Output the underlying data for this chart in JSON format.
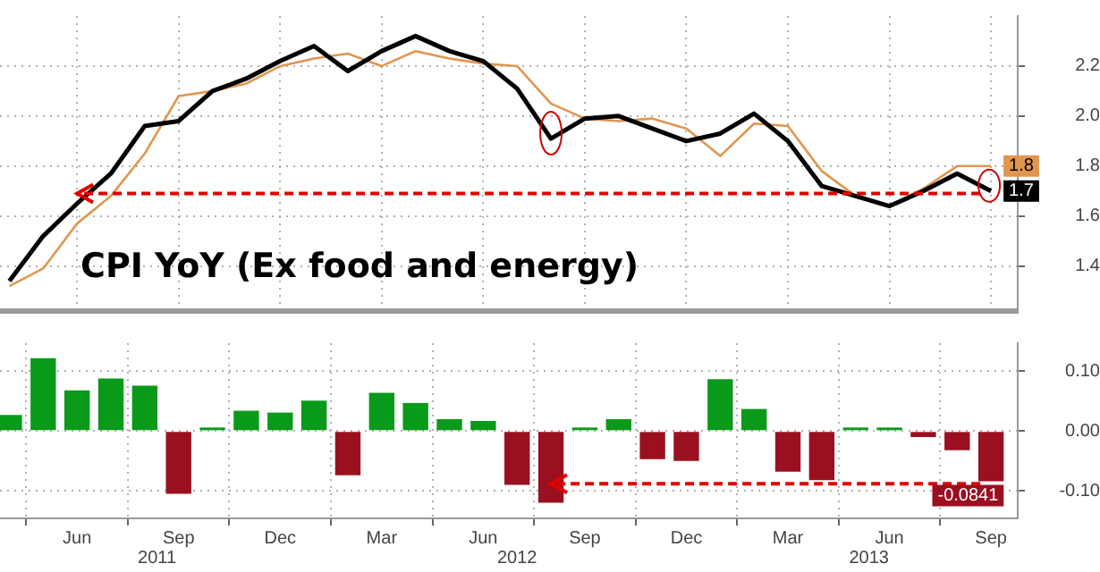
{
  "chart_data": [
    {
      "type": "line",
      "title": "CPI YoY (Ex food and energy)",
      "x": [
        "2011-04",
        "2011-05",
        "2011-06",
        "2011-07",
        "2011-08",
        "2011-09",
        "2011-10",
        "2011-11",
        "2011-12",
        "2012-01",
        "2012-02",
        "2012-03",
        "2012-04",
        "2012-05",
        "2012-06",
        "2012-07",
        "2012-08",
        "2012-09",
        "2012-10",
        "2012-11",
        "2012-12",
        "2013-01",
        "2013-02",
        "2013-03",
        "2013-04",
        "2013-05",
        "2013-06",
        "2013-07",
        "2013-08",
        "2013-09"
      ],
      "series": [
        {
          "color": "#000000",
          "values": [
            1.34,
            1.52,
            1.65,
            1.77,
            1.96,
            1.98,
            2.1,
            2.15,
            2.22,
            2.28,
            2.18,
            2.26,
            2.32,
            2.26,
            2.22,
            2.11,
            1.91,
            1.99,
            2.0,
            1.95,
            1.9,
            1.93,
            2.01,
            1.9,
            1.72,
            1.68,
            1.64,
            1.7,
            1.77,
            1.7
          ],
          "value_labels": [
            null,
            null,
            null,
            null,
            null,
            null,
            null,
            null,
            null,
            null,
            null,
            null,
            null,
            null,
            null,
            null,
            null,
            null,
            null,
            null,
            null,
            null,
            null,
            null,
            null,
            null,
            null,
            null,
            null,
            "1.7"
          ]
        },
        {
          "color": "#e0964f",
          "values": [
            1.32,
            1.39,
            1.57,
            1.68,
            1.85,
            2.08,
            2.1,
            2.13,
            2.2,
            2.23,
            2.25,
            2.2,
            2.26,
            2.23,
            2.21,
            2.2,
            2.05,
            1.99,
            1.98,
            1.99,
            1.95,
            1.84,
            1.97,
            1.96,
            1.78,
            1.68,
            1.64,
            1.71,
            1.8,
            1.8
          ],
          "value_labels": [
            null,
            null,
            null,
            null,
            null,
            null,
            null,
            null,
            null,
            null,
            null,
            null,
            null,
            null,
            null,
            null,
            null,
            null,
            null,
            null,
            null,
            null,
            null,
            null,
            null,
            null,
            null,
            null,
            null,
            "1.8"
          ]
        }
      ],
      "xlim": [
        "2011-03-23",
        "2013-09-25"
      ],
      "xticks": [
        {
          "value": "2011-06",
          "label": null
        },
        {
          "value": "2011-09",
          "label": null
        },
        {
          "value": "2011-12",
          "label": null
        },
        {
          "value": "2012-03",
          "label": null
        },
        {
          "value": "2012-06",
          "label": null
        },
        {
          "value": "2012-09",
          "label": null
        },
        {
          "value": "2012-12",
          "label": null
        },
        {
          "value": "2013-03",
          "label": null
        },
        {
          "value": "2013-06",
          "label": null
        },
        {
          "value": "2013-09",
          "label": null
        }
      ],
      "ylim": [
        1.22,
        2.4
      ],
      "yticks": [
        1.4,
        1.6,
        1.8,
        {
          "value": 2,
          "label": "2.0"
        },
        2.2
      ],
      "ref_lines": [
        {
          "axis": "y",
          "value": 1.69,
          "color": "#e00000",
          "line_style": "dashed"
        }
      ],
      "grid": true,
      "marker": "none",
      "tick_labels": "y"
    },
    {
      "type": "bar",
      "x": [
        "2011-04",
        "2011-05",
        "2011-06",
        "2011-07",
        "2011-08",
        "2011-09",
        "2011-10",
        "2011-11",
        "2011-12",
        "2012-01",
        "2012-02",
        "2012-03",
        "2012-04",
        "2012-05",
        "2012-06",
        "2012-07",
        "2012-08",
        "2012-09",
        "2012-10",
        "2012-11",
        "2012-12",
        "2013-01",
        "2013-02",
        "2013-03",
        "2013-04",
        "2013-05",
        "2013-06",
        "2013-07",
        "2013-08",
        "2013-09"
      ],
      "values": [
        0.027,
        0.122,
        0.068,
        0.088,
        0.076,
        -0.105,
        0.004,
        0.034,
        0.031,
        0.051,
        -0.074,
        0.064,
        0.047,
        0.02,
        0.017,
        -0.09,
        -0.12,
        0.002,
        0.02,
        -0.047,
        -0.05,
        0.087,
        0.037,
        -0.068,
        -0.082,
        0.004,
        0.004,
        -0.01,
        -0.032,
        -0.0841
      ],
      "colors": [
        "#0a9a1a",
        "#0a9a1a",
        "#0a9a1a",
        "#0a9a1a",
        "#0a9a1a",
        "#9a1020",
        "#0a9a1a",
        "#0a9a1a",
        "#0a9a1a",
        "#0a9a1a",
        "#9a1020",
        "#0a9a1a",
        "#0a9a1a",
        "#0a9a1a",
        "#0a9a1a",
        "#9a1020",
        "#9a1020",
        "#0a9a1a",
        "#0a9a1a",
        "#9a1020",
        "#9a1020",
        "#0a9a1a",
        "#0a9a1a",
        "#9a1020",
        "#9a1020",
        "#0a9a1a",
        "#0a9a1a",
        "#9a1020",
        "#9a1020",
        "#9a1020"
      ],
      "value_labels": [
        null,
        null,
        null,
        null,
        null,
        null,
        null,
        null,
        null,
        null,
        null,
        null,
        null,
        null,
        null,
        null,
        null,
        null,
        null,
        null,
        null,
        null,
        null,
        null,
        null,
        null,
        null,
        null,
        null,
        "-0.0841"
      ],
      "xlim": [
        "2011-03-23",
        "2013-09-25"
      ],
      "xticks": [
        {
          "value": "2011-06",
          "label": "Jun"
        },
        {
          "value": "2011-09",
          "label": "Sep"
        },
        {
          "value": "2011-12",
          "label": "Dec"
        },
        {
          "value": "2012-03",
          "label": "Mar"
        },
        {
          "value": "2012-06",
          "label": "Jun"
        },
        {
          "value": "2012-09",
          "label": "Sep"
        },
        {
          "value": "2012-12",
          "label": "Dec"
        },
        {
          "value": "2013-03",
          "label": "Mar"
        },
        {
          "value": "2013-06",
          "label": "Jun"
        },
        {
          "value": "2013-09",
          "label": "Sep"
        }
      ],
      "ylim": [
        -0.146,
        0.147
      ],
      "yticks": [
        {
          "value": -0.1,
          "label": "-0.10"
        },
        {
          "value": 0,
          "label": "0.00"
        },
        {
          "value": 0.1,
          "label": "0.10"
        }
      ],
      "ref_lines": [
        {
          "axis": "y",
          "value": -0.088,
          "color": "#e00000",
          "line_style": "dashed"
        }
      ],
      "annotations": [
        "2011",
        "2012",
        "2013"
      ],
      "grid": true
    }
  ]
}
